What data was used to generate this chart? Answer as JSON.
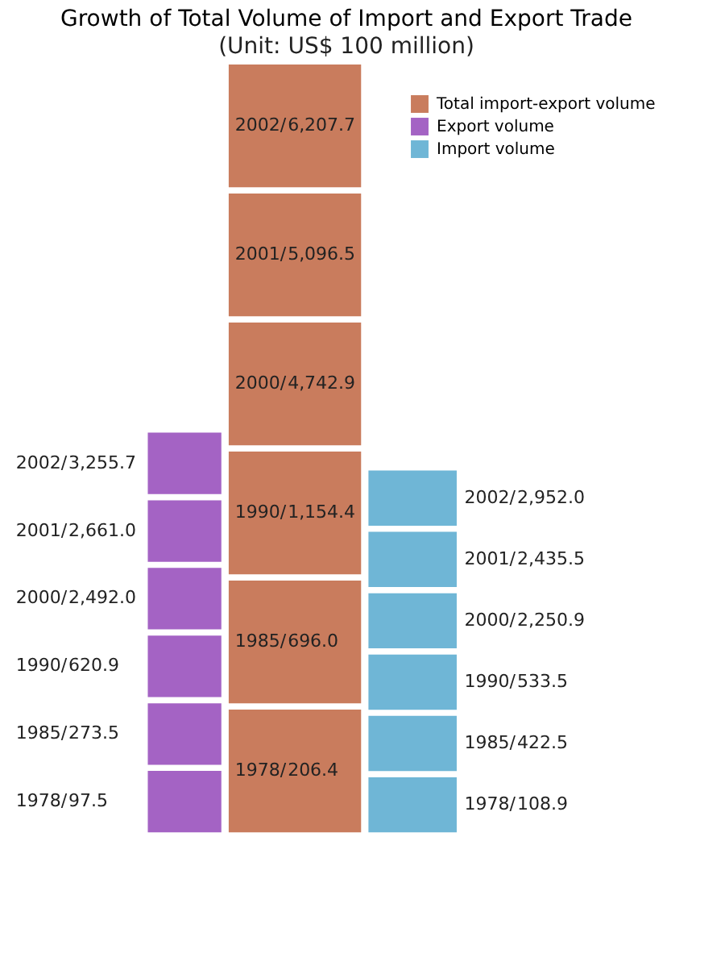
{
  "chart_data": {
    "type": "other",
    "title": "Growth of Total Volume of Import and Export Trade",
    "subtitle": "(Unit: US$ 100 million)",
    "legend": "top right",
    "categories": [
      "1978/",
      "1985/",
      "1990/",
      "2000/",
      "2001/",
      "2002/"
    ],
    "series": [
      {
        "name": "Total import-export volume",
        "color": "#c97c5d",
        "values": [
          206.4,
          696.0,
          1154.4,
          4742.9,
          5096.5,
          6207.7
        ],
        "value_labels": [
          "206.4",
          "696.0",
          "1,154.4",
          "4,742.9",
          "5,096.5",
          "6,207.7"
        ]
      },
      {
        "name": "Export volume",
        "color": "#a463c4",
        "values": [
          97.5,
          273.5,
          620.9,
          2492.0,
          2661.0,
          3255.7
        ],
        "value_labels": [
          "97.5",
          "273.5",
          "620.9",
          "2,492.0",
          "2,661.0",
          "3,255.7"
        ]
      },
      {
        "name": "Import volume",
        "color": "#6fb6d6",
        "values": [
          108.9,
          422.5,
          533.5,
          2250.9,
          2435.5,
          2952.0
        ],
        "value_labels": [
          "108.9",
          "422.5",
          "533.5",
          "2,250.9",
          "2,435.5",
          "2,952.0"
        ]
      }
    ]
  }
}
